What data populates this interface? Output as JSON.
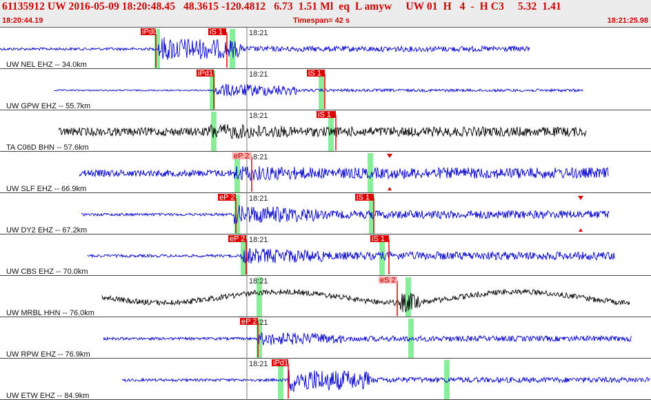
{
  "header": {
    "title": "61135912 UW 2016-05-09 18:20:48.45   48.3615 -120.4812   6.73  1.51 Ml  eq  L amyw     UW 01  H   4  -  H C3     5.32  1.41",
    "start_time": "18:20:44.19",
    "timespan": "Timespan=  42 s",
    "end_time": "18:21:25.98"
  },
  "time_tick_label": "18:21",
  "colors": {
    "header_text": "#cc0000",
    "header_bg": "#ececec",
    "trace_blue": "#0000cc",
    "trace_black": "#000000",
    "pick_red": "#dd0000",
    "pick_pink": "#ffaaaa",
    "predicted_green": "#88ee99"
  },
  "channels": [
    {
      "label": "UW NEL EHZ -- 34.0km",
      "color": "blue",
      "picks": [
        {
          "label": "iPd0",
          "style": "red"
        },
        {
          "label": "iS 1",
          "style": "red"
        }
      ]
    },
    {
      "label": "UW GPW EHZ -- 55.7km",
      "color": "blue",
      "picks": [
        {
          "label": "iPd1",
          "style": "red"
        },
        {
          "label": "iS 1",
          "style": "red"
        }
      ]
    },
    {
      "label": "TA C06D BHN -- 57.6km",
      "color": "black",
      "picks": [
        {
          "label": "iS 1",
          "style": "red"
        }
      ]
    },
    {
      "label": "UW SLF EHZ -- 66.9km",
      "color": "blue",
      "picks": [
        {
          "label": "eP 2",
          "style": "pink"
        }
      ]
    },
    {
      "label": "UW DY2 EHZ -- 67.2km",
      "color": "blue",
      "picks": [
        {
          "label": "eP 2",
          "style": "red"
        },
        {
          "label": "iS 1",
          "style": "red"
        }
      ]
    },
    {
      "label": "UW CBS EHZ -- 70.0km",
      "color": "blue",
      "picks": [
        {
          "label": "eP 2",
          "style": "red"
        },
        {
          "label": "iS 1",
          "style": "red"
        }
      ]
    },
    {
      "label": "UW MRBL HHN -- 76.0km",
      "color": "black",
      "picks": [
        {
          "label": "eS 2",
          "style": "pink"
        }
      ]
    },
    {
      "label": "UW RPW EHZ -- 76.9km",
      "color": "blue",
      "picks": [
        {
          "label": "eP 2",
          "style": "red"
        }
      ]
    },
    {
      "label": "UW ETW EHZ -- 84.9km",
      "color": "blue",
      "picks": [
        {
          "label": "iPd1",
          "style": "red"
        }
      ]
    }
  ]
}
